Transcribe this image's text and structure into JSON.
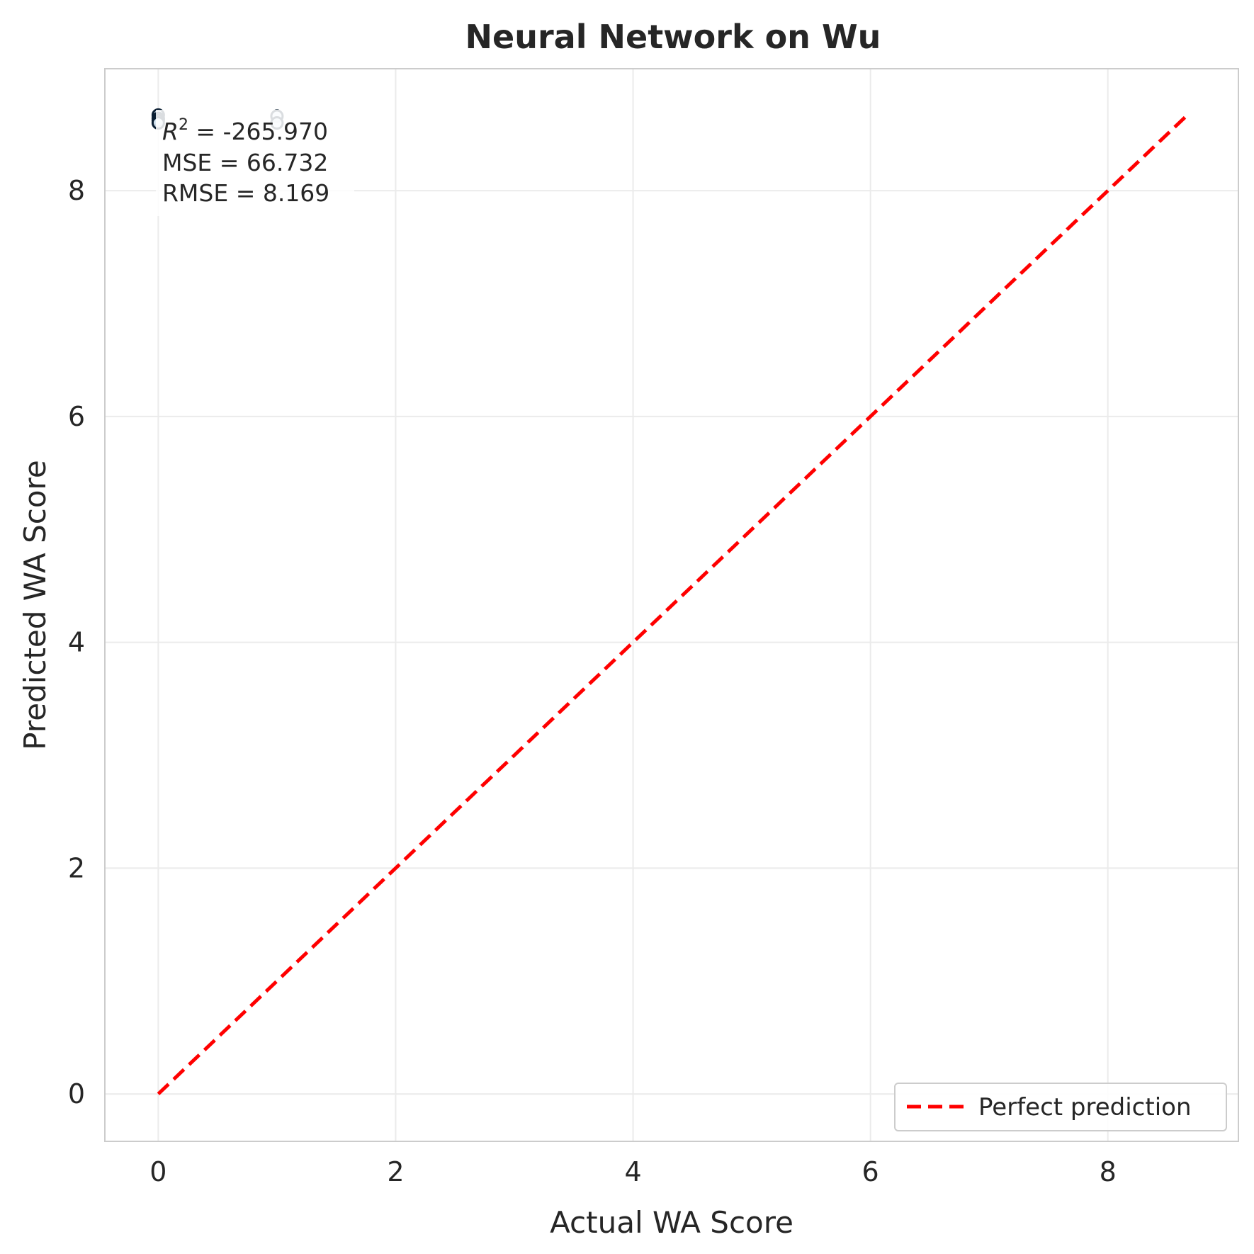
{
  "chart_data": {
    "type": "scatter",
    "title": "Neural Network on Wu",
    "xlabel": "Actual WA Score",
    "ylabel": "Predicted WA Score",
    "xlim": [
      -0.45,
      9.1
    ],
    "ylim": [
      -0.42,
      9.08
    ],
    "xticks": [
      0,
      2,
      4,
      6,
      8
    ],
    "yticks": [
      0,
      2,
      4,
      6,
      8
    ],
    "grid": true,
    "points": [
      {
        "x": 0.0,
        "y": 8.67
      },
      {
        "x": 0.0,
        "y": 8.64
      },
      {
        "x": 0.0,
        "y": 8.62
      },
      {
        "x": 0.0,
        "y": 8.6
      },
      {
        "x": 1.0,
        "y": 8.66
      },
      {
        "x": 1.0,
        "y": 8.6
      }
    ],
    "reference_line": {
      "name": "Perfect prediction",
      "x": [
        0,
        8.67
      ],
      "y": [
        0,
        8.67
      ],
      "color": "#ff0000",
      "style": "dashed"
    },
    "legend": {
      "placement": "lower-right",
      "entries": [
        "Perfect prediction"
      ]
    },
    "annotation": {
      "r2_label": "R",
      "r2_sup": "2",
      "r2_value": " = -265.970",
      "mse": "MSE = 66.732",
      "rmse": "RMSE = 8.169",
      "placement": "top-left"
    },
    "colors": {
      "points": "#d6e6f2",
      "point_edge": "#0b1f33",
      "line": "#ff0000",
      "grid": "#ebebeb",
      "frame": "#cccccc"
    }
  }
}
